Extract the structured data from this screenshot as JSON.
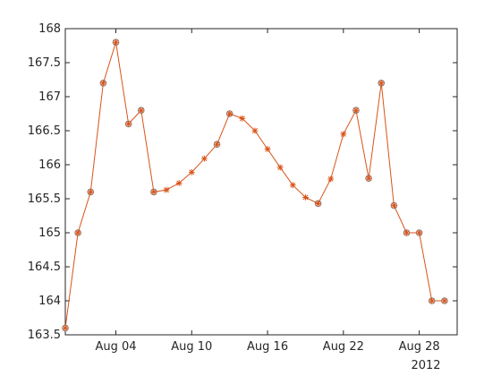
{
  "chart_data": {
    "type": "line",
    "title": "",
    "xlabel": "",
    "ylabel": "",
    "x_axis_type": "date",
    "x_year_label": "2012",
    "xlim": [
      "2012-07-31",
      "2012-08-31"
    ],
    "ylim": [
      163.5,
      168
    ],
    "x_ticks": [
      {
        "date": "2012-08-04",
        "label": "Aug 04"
      },
      {
        "date": "2012-08-10",
        "label": "Aug 10"
      },
      {
        "date": "2012-08-16",
        "label": "Aug 16"
      },
      {
        "date": "2012-08-22",
        "label": "Aug 22"
      },
      {
        "date": "2012-08-28",
        "label": "Aug 28"
      }
    ],
    "y_ticks": [
      {
        "value": 163.5,
        "label": "163.5"
      },
      {
        "value": 164,
        "label": "164"
      },
      {
        "value": 164.5,
        "label": "164.5"
      },
      {
        "value": 165,
        "label": "165"
      },
      {
        "value": 165.5,
        "label": "165.5"
      },
      {
        "value": 166,
        "label": "166"
      },
      {
        "value": 166.5,
        "label": "166.5"
      },
      {
        "value": 167,
        "label": "167"
      },
      {
        "value": 167.5,
        "label": "167.5"
      },
      {
        "value": 168,
        "label": "168"
      }
    ],
    "grid": false,
    "legend": "none",
    "colors": {
      "line": "#d95319",
      "asterisk": "#d95319",
      "circle_marker": "#7f7f7f",
      "axis": "#262626"
    },
    "series": [
      {
        "values": [
          {
            "x": "2012-07-31",
            "y": 163.6,
            "measured": true
          },
          {
            "x": "2012-08-01",
            "y": 165.0,
            "measured": true
          },
          {
            "x": "2012-08-02",
            "y": 165.6,
            "measured": true
          },
          {
            "x": "2012-08-03",
            "y": 167.2,
            "measured": true
          },
          {
            "x": "2012-08-04",
            "y": 167.8,
            "measured": true
          },
          {
            "x": "2012-08-05",
            "y": 166.6,
            "measured": true
          },
          {
            "x": "2012-08-06",
            "y": 166.8,
            "measured": true
          },
          {
            "x": "2012-08-07",
            "y": 165.6,
            "measured": true
          },
          {
            "x": "2012-08-08",
            "y": 165.63,
            "measured": false
          },
          {
            "x": "2012-08-09",
            "y": 165.73,
            "measured": false
          },
          {
            "x": "2012-08-10",
            "y": 165.89,
            "measured": false
          },
          {
            "x": "2012-08-11",
            "y": 166.09,
            "measured": false
          },
          {
            "x": "2012-08-12",
            "y": 166.3,
            "measured": true
          },
          {
            "x": "2012-08-13",
            "y": 166.75,
            "measured": true
          },
          {
            "x": "2012-08-14",
            "y": 166.68,
            "measured": false
          },
          {
            "x": "2012-08-15",
            "y": 166.5,
            "measured": false
          },
          {
            "x": "2012-08-16",
            "y": 166.23,
            "measured": false
          },
          {
            "x": "2012-08-17",
            "y": 165.96,
            "measured": false
          },
          {
            "x": "2012-08-18",
            "y": 165.7,
            "measured": false
          },
          {
            "x": "2012-08-19",
            "y": 165.52,
            "measured": false
          },
          {
            "x": "2012-08-20",
            "y": 165.43,
            "measured": true
          },
          {
            "x": "2012-08-21",
            "y": 165.79,
            "measured": false
          },
          {
            "x": "2012-08-22",
            "y": 166.45,
            "measured": false
          },
          {
            "x": "2012-08-23",
            "y": 166.8,
            "measured": true
          },
          {
            "x": "2012-08-24",
            "y": 165.8,
            "measured": true
          },
          {
            "x": "2012-08-25",
            "y": 167.2,
            "measured": true
          },
          {
            "x": "2012-08-26",
            "y": 165.4,
            "measured": true
          },
          {
            "x": "2012-08-27",
            "y": 165.0,
            "measured": true
          },
          {
            "x": "2012-08-28",
            "y": 165.0,
            "measured": true
          },
          {
            "x": "2012-08-29",
            "y": 164.0,
            "measured": true
          },
          {
            "x": "2012-08-30",
            "y": 164.0,
            "measured": true
          }
        ]
      }
    ]
  }
}
